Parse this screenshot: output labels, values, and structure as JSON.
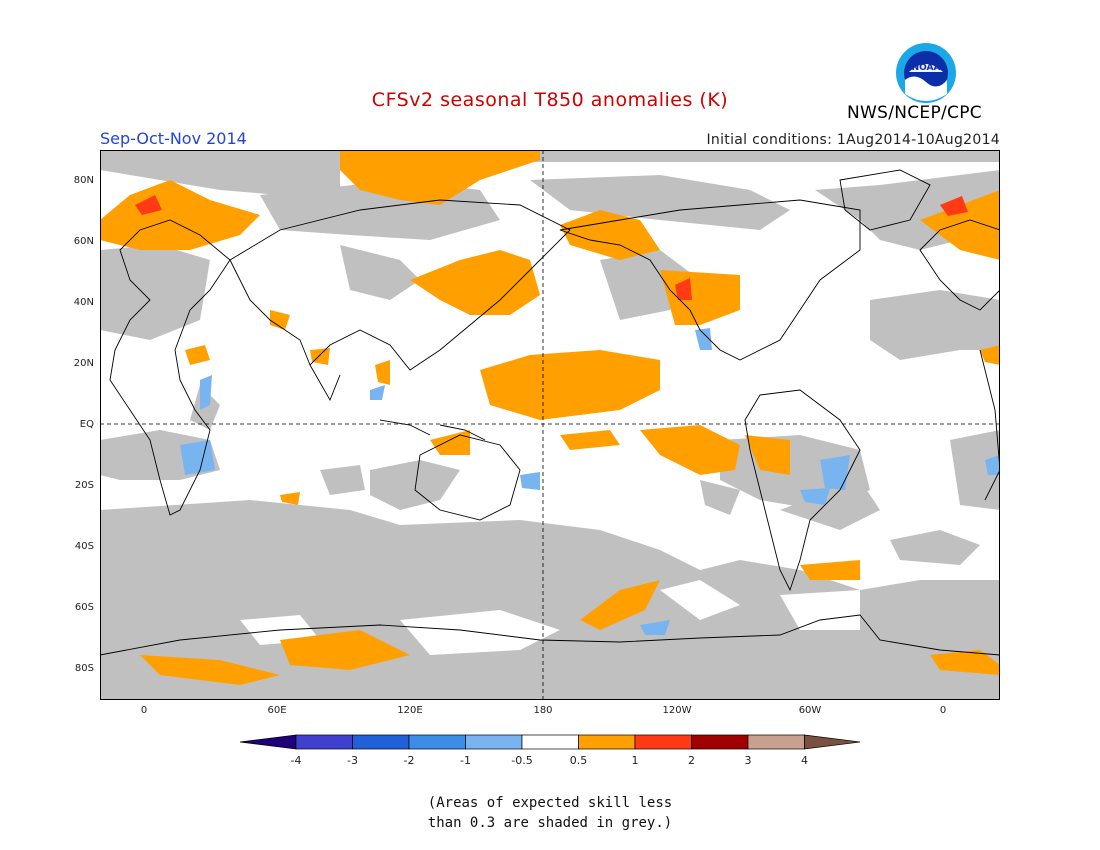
{
  "header": {
    "title": "CFSv2 seasonal T850 anomalies (K)",
    "title_color": "#d00000",
    "season": "Sep-Oct-Nov 2014",
    "season_color": "#2244dd",
    "initial_conditions": "Initial conditions: 1Aug2014-10Aug2014",
    "agency": "NWS/NCEP/CPC",
    "logo_text": "NOAA"
  },
  "map": {
    "lat_labels": [
      "80N",
      "60N",
      "40N",
      "20N",
      "EQ",
      "20S",
      "40S",
      "60S",
      "80S"
    ],
    "lon_labels": [
      "0",
      "60E",
      "120E",
      "180",
      "120W",
      "60W",
      "0"
    ],
    "low_skill_color": "#c0c0c0",
    "warm_colors": {
      "0.5-1": "#ffa000",
      "1-2": "#ff3a14"
    },
    "cool_colors": {
      "-1--0.5": "#78b4f0"
    }
  },
  "colorbar": {
    "colors": [
      "#20007a",
      "#4040d0",
      "#2060d8",
      "#3c8ce8",
      "#78b4f0",
      "#ffffff",
      "#ffa000",
      "#ff3a14",
      "#a00000",
      "#c8a090",
      "#7a5040"
    ],
    "labels": [
      "-4",
      "-3",
      "-2",
      "-1",
      "-0.5",
      "0.5",
      "1",
      "2",
      "3",
      "4"
    ]
  },
  "note": {
    "line1": "(Areas of expected skill less",
    "line2": "than 0.3 are shaded in grey.)"
  }
}
